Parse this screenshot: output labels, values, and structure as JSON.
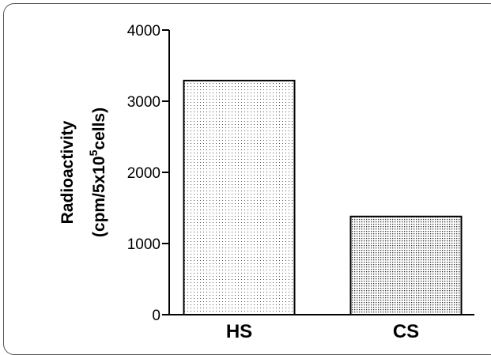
{
  "chart_data": {
    "type": "bar",
    "categories": [
      "HS",
      "CS"
    ],
    "values": [
      3290,
      1380
    ],
    "ylim": [
      0,
      4000
    ],
    "yticks": [
      0,
      1000,
      2000,
      3000,
      4000
    ],
    "ylabel_line1": "Radioactivity",
    "ylabel_line2_prefix": "(cpm/5x10",
    "ylabel_line2_sup": "5",
    "ylabel_line2_suffix": "cells)",
    "xlabel": "",
    "title": "",
    "bar_fills": [
      "light-dotted",
      "dense-dotted"
    ],
    "grid": false,
    "legend": "none"
  }
}
